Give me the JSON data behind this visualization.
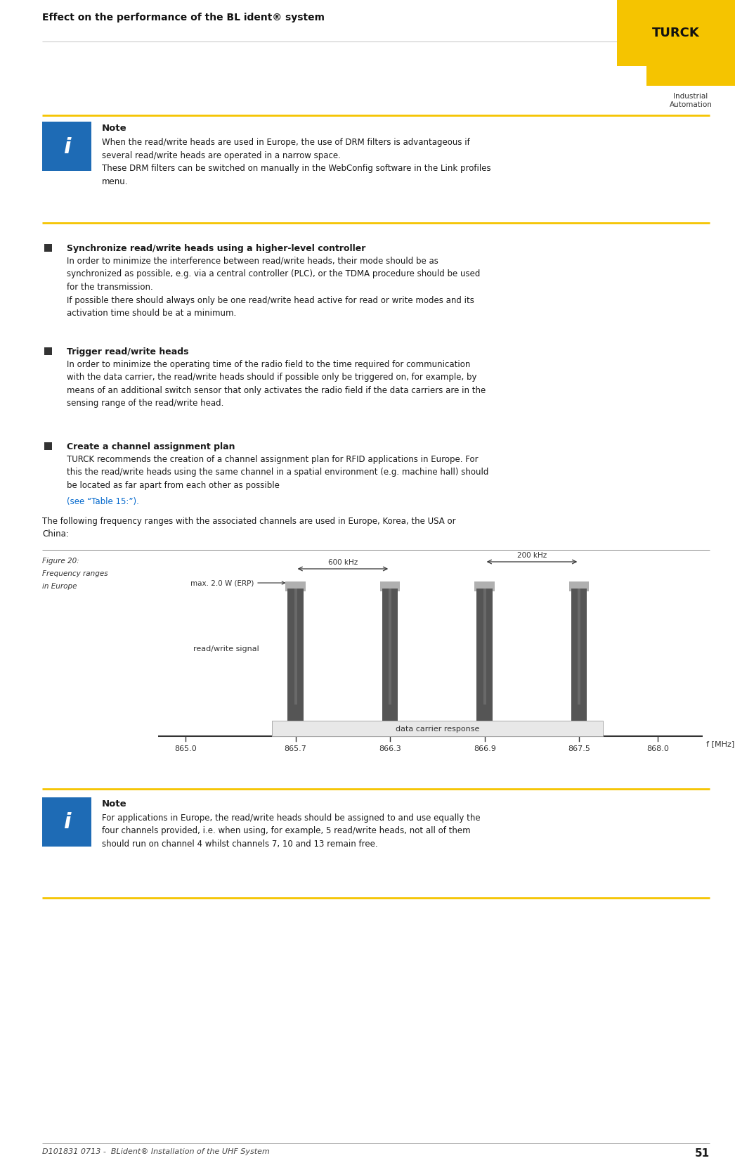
{
  "page_width": 10.46,
  "page_height": 16.65,
  "bg_color": "#ffffff",
  "header_title": "Effect on the performance of the BL ident® system",
  "turck_yellow": "#F5C400",
  "footer_text": "D101831 0713 -  BLident® Installation of the UHF System",
  "footer_number": "51",
  "note1_title": "Note",
  "note1_text": "When the read/write heads are used in Europe, the use of DRM filters is advantageous if\nseveral read/write heads are operated in a narrow space.\nThese DRM filters can be switched on manually in the WebConfig software in the Link profiles\nmenu.",
  "note2_title": "Note",
  "note2_text": "For applications in Europe, the read/write heads should be assigned to and use equally the\nfour channels provided, i.e. when using, for example, 5 read/write heads, not all of them\nshould run on channel 4 whilst channels 7, 10 and 13 remain free.",
  "bullet1_title": "Synchronize read/write heads using a higher-level controller",
  "bullet1_text": "In order to minimize the interference between read/write heads, their mode should be as\nsynchronized as possible, e.g. via a central controller (PLC), or the TDMA procedure should be used\nfor the transmission.\nIf possible there should always only be one read/write head active for read or write modes and its\nactivation time should be at a minimum.",
  "bullet2_title": "Trigger read/write heads",
  "bullet2_text": "In order to minimize the operating time of the radio field to the time required for communication\nwith the data carrier, the read/write heads should if possible only be triggered on, for example, by\nmeans of an additional switch sensor that only activates the radio field if the data carriers are in the\nsensing range of the read/write head.",
  "bullet3_title": "Create a channel assignment plan",
  "bullet3_text_plain": "TURCK recommends the creation of a channel assignment plan for RFID applications in Europe. For\nthis the read/write heads using the same channel in a spatial environment (e.g. machine hall) should\nbe located as far apart from each other as possible",
  "bullet3_see": "(see “Table 15:”).",
  "intro_text": "The following frequency ranges with the associated channels are used in Europe, Korea, the USA or\nChina:",
  "fig_caption_line1": "Figure 20:",
  "fig_caption_line2": "Frequency ranges",
  "fig_caption_line3": "in Europe",
  "chart_xlabel": "f [MHz]",
  "chart_xticks": [
    "865.0",
    "865.7",
    "866.3",
    "866.9",
    "867.5",
    "868.0"
  ],
  "chart_xtick_vals": [
    865.0,
    865.7,
    866.3,
    866.9,
    867.5,
    868.0
  ],
  "chart_bar_centers": [
    865.7,
    866.3,
    866.9,
    867.5
  ],
  "chart_label_600khz": "600 kHz",
  "chart_label_200khz": "200 kHz",
  "chart_label_max": "max. 2.0 W (ERP)",
  "chart_label_rw": "read/write signal",
  "chart_label_dc": "data carrier response",
  "see_table_color": "#0066cc",
  "icon_blue": "#1e6bb5",
  "text_dark": "#1a1a1a",
  "text_gray": "#444444",
  "line_gray": "#aaaaaa",
  "line_yellow": "#F5C400"
}
